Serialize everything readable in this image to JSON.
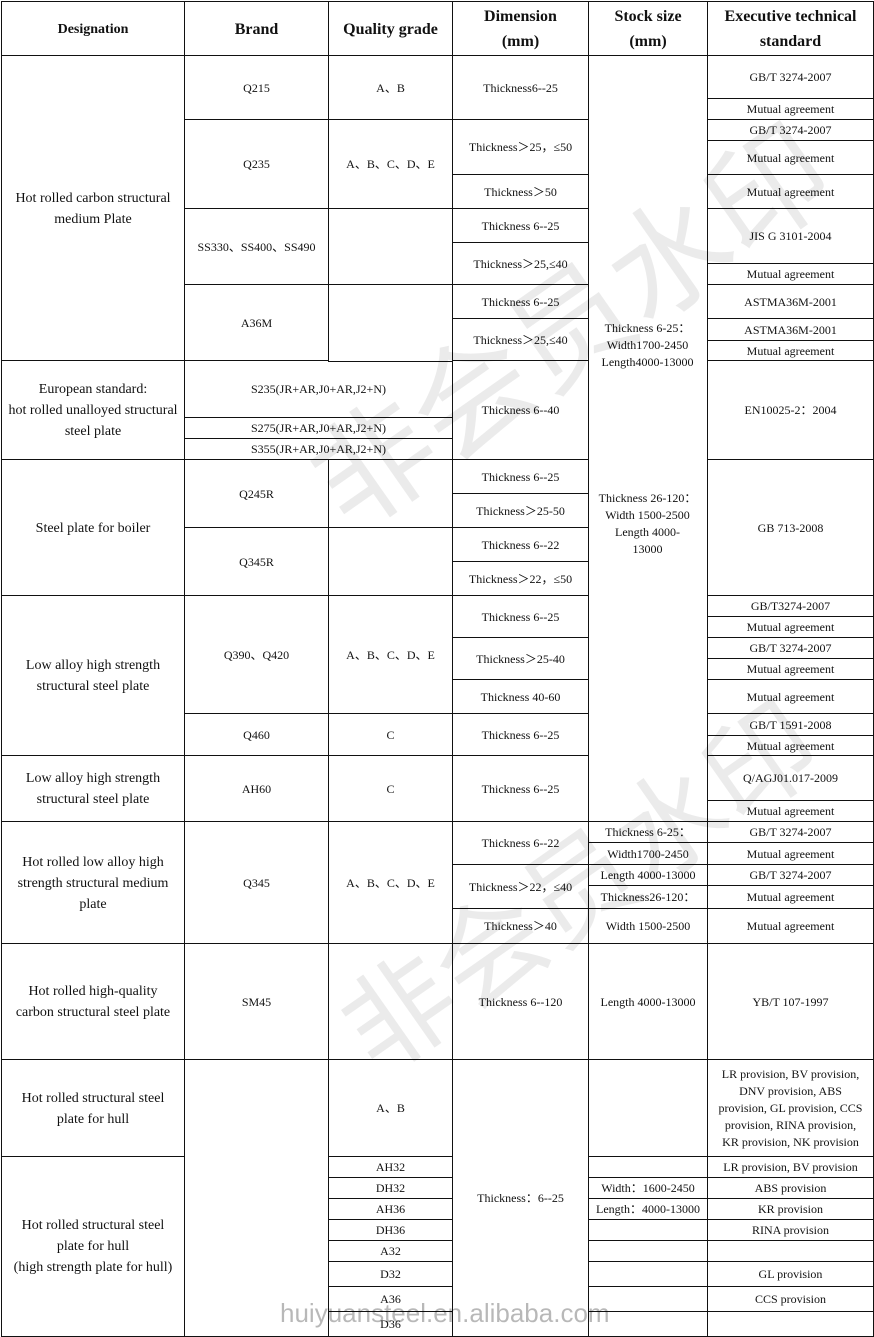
{
  "header": {
    "designation": "Designation",
    "brand": "Brand",
    "quality_grade": "Quality grade",
    "dimension": "Dimension\n(mm)",
    "stock_size": "Stock size\n(mm)",
    "standard": "Executive technical\nstandard"
  },
  "designations": [
    "Hot rolled carbon structural\nmedium Plate",
    "European standard:\nhot rolled unalloyed structural\nsteel plate",
    "Steel plate for boiler",
    "Low alloy high strength\nstructural steel plate",
    "Low alloy high strength\nstructural steel plate",
    "Hot rolled low alloy high\nstrength structural medium\nplate",
    "Hot rolled high-quality\ncarbon structural steel plate",
    "Hot rolled structural steel\nplate for hull",
    "Hot rolled structural steel\nplate for hull\n(high strength plate for hull)"
  ],
  "brands": [
    "Q215",
    "Q235",
    "SS330、SS400、SS490",
    "A36M",
    "S235(JR+AR,J0+AR,J2+N)",
    "S275(JR+AR,J0+AR,J2+N)",
    "S355(JR+AR,J0+AR,J2+N)",
    "Q245R",
    "Q345R",
    "Q390、Q420",
    "Q460",
    "AH60",
    "Q345",
    "SM45"
  ],
  "grades": [
    "A、B",
    "A、B、C、D、E",
    "A、B、C、D、E",
    "C",
    "C",
    "A、B、C、D、E",
    "A、B",
    "AH32",
    "DH32",
    "AH36",
    "DH36",
    "A32",
    "D32",
    "A36",
    "D36"
  ],
  "dimensions": [
    "Thickness6--25",
    "Thickness＞25，≤50",
    "Thickness＞50",
    "Thickness 6--25",
    "Thickness＞25,≤40",
    "Thickness 6--25",
    "Thickness＞25,≤40",
    "Thickness 6--40",
    "Thickness 6--25",
    "Thickness＞25-50",
    "Thickness 6--22",
    "Thickness＞22，≤50",
    "Thickness 6--25",
    "Thickness＞25-40",
    "Thickness 40-60",
    "Thickness 6--25",
    "Thickness 6--25",
    "Thickness 6--22",
    "Thickness＞22，≤40",
    "Thickness＞40",
    "Thickness 6--120",
    "Thickness：6--25"
  ],
  "stock": [
    "Thickness 6-25：\nWidth1700-2450\nLength4000-13000",
    "Thickness 26-120：\nWidth 1500-2500\nLength 4000-\n13000",
    "Thickness 6-25：",
    "Width1700-2450",
    "Length 4000-13000",
    "Thickness26-120：",
    "Width 1500-2500",
    "Length 4000-13000",
    "Width：1600-2450",
    "Length：4000-13000"
  ],
  "standards": [
    "GB/T 3274-2007",
    "Mutual agreement",
    "GB/T 3274-2007",
    "Mutual agreement",
    "Mutual agreement",
    "JIS G 3101-2004",
    "Mutual agreement",
    "ASTMA36M-2001",
    "ASTMA36M-2001",
    "Mutual agreement",
    "EN10025-2：2004",
    "GB 713-2008",
    "GB/T3274-2007",
    "Mutual agreement",
    "GB/T 3274-2007",
    "Mutual agreement",
    "Mutual agreement",
    "GB/T 1591-2008",
    "Mutual agreement",
    "Q/AGJ01.017-2009",
    "Mutual agreement",
    "GB/T 3274-2007",
    "Mutual agreement",
    "GB/T 3274-2007",
    "Mutual agreement",
    "Mutual agreement",
    "YB/T 107-1997",
    "LR provision, BV provision,\nDNV provision, ABS\nprovision,  GL provision, CCS\nprovision,   RINA provision,\nKR provision,  NK provision",
    "LR provision, BV provision",
    "ABS provision",
    "KR provision",
    "RINA provision",
    "GL provision",
    "CCS provision"
  ],
  "watermark": {
    "chinese": "非会员水印",
    "site": "huiyuansteel.en.alibaba.com"
  }
}
